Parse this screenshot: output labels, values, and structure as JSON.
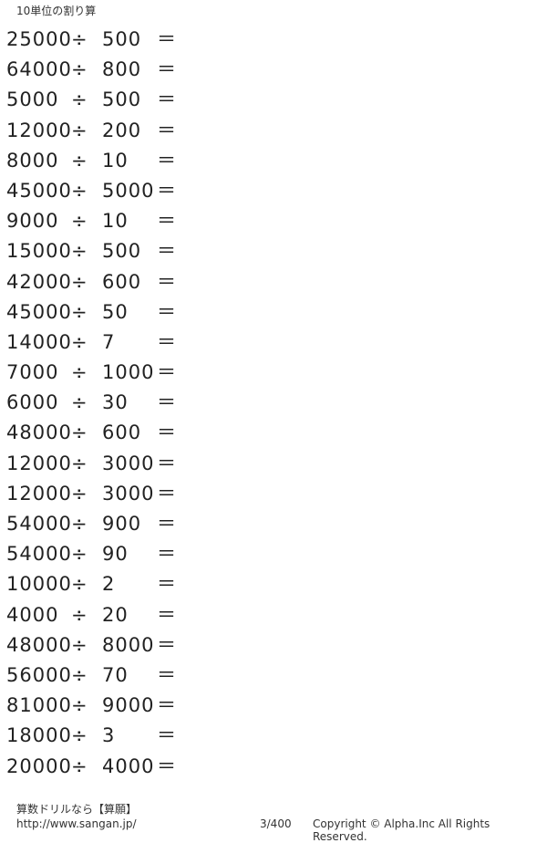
{
  "title": "10単位の割り算",
  "operator": "÷",
  "equals": "＝",
  "problems": [
    [
      "25000",
      "500"
    ],
    [
      "64000",
      "800"
    ],
    [
      "5000",
      "500"
    ],
    [
      "12000",
      "200"
    ],
    [
      "8000",
      "10"
    ],
    [
      "45000",
      "5000"
    ],
    [
      "9000",
      "10"
    ],
    [
      "15000",
      "500"
    ],
    [
      "42000",
      "600"
    ],
    [
      "45000",
      "50"
    ],
    [
      "14000",
      "7"
    ],
    [
      "7000",
      "1000"
    ],
    [
      "6000",
      "30"
    ],
    [
      "48000",
      "600"
    ],
    [
      "12000",
      "3000"
    ],
    [
      "12000",
      "3000"
    ],
    [
      "54000",
      "900"
    ],
    [
      "54000",
      "90"
    ],
    [
      "10000",
      "2"
    ],
    [
      "4000",
      "20"
    ],
    [
      "48000",
      "8000"
    ],
    [
      "56000",
      "70"
    ],
    [
      "81000",
      "9000"
    ],
    [
      "18000",
      "3"
    ],
    [
      "20000",
      "4000"
    ]
  ],
  "footer": {
    "brand": "算数ドリルなら【算願】",
    "url": "http://www.sangan.jp/",
    "page": "3/400",
    "copyright": "Copyright © Alpha.Inc All Rights Reserved."
  }
}
